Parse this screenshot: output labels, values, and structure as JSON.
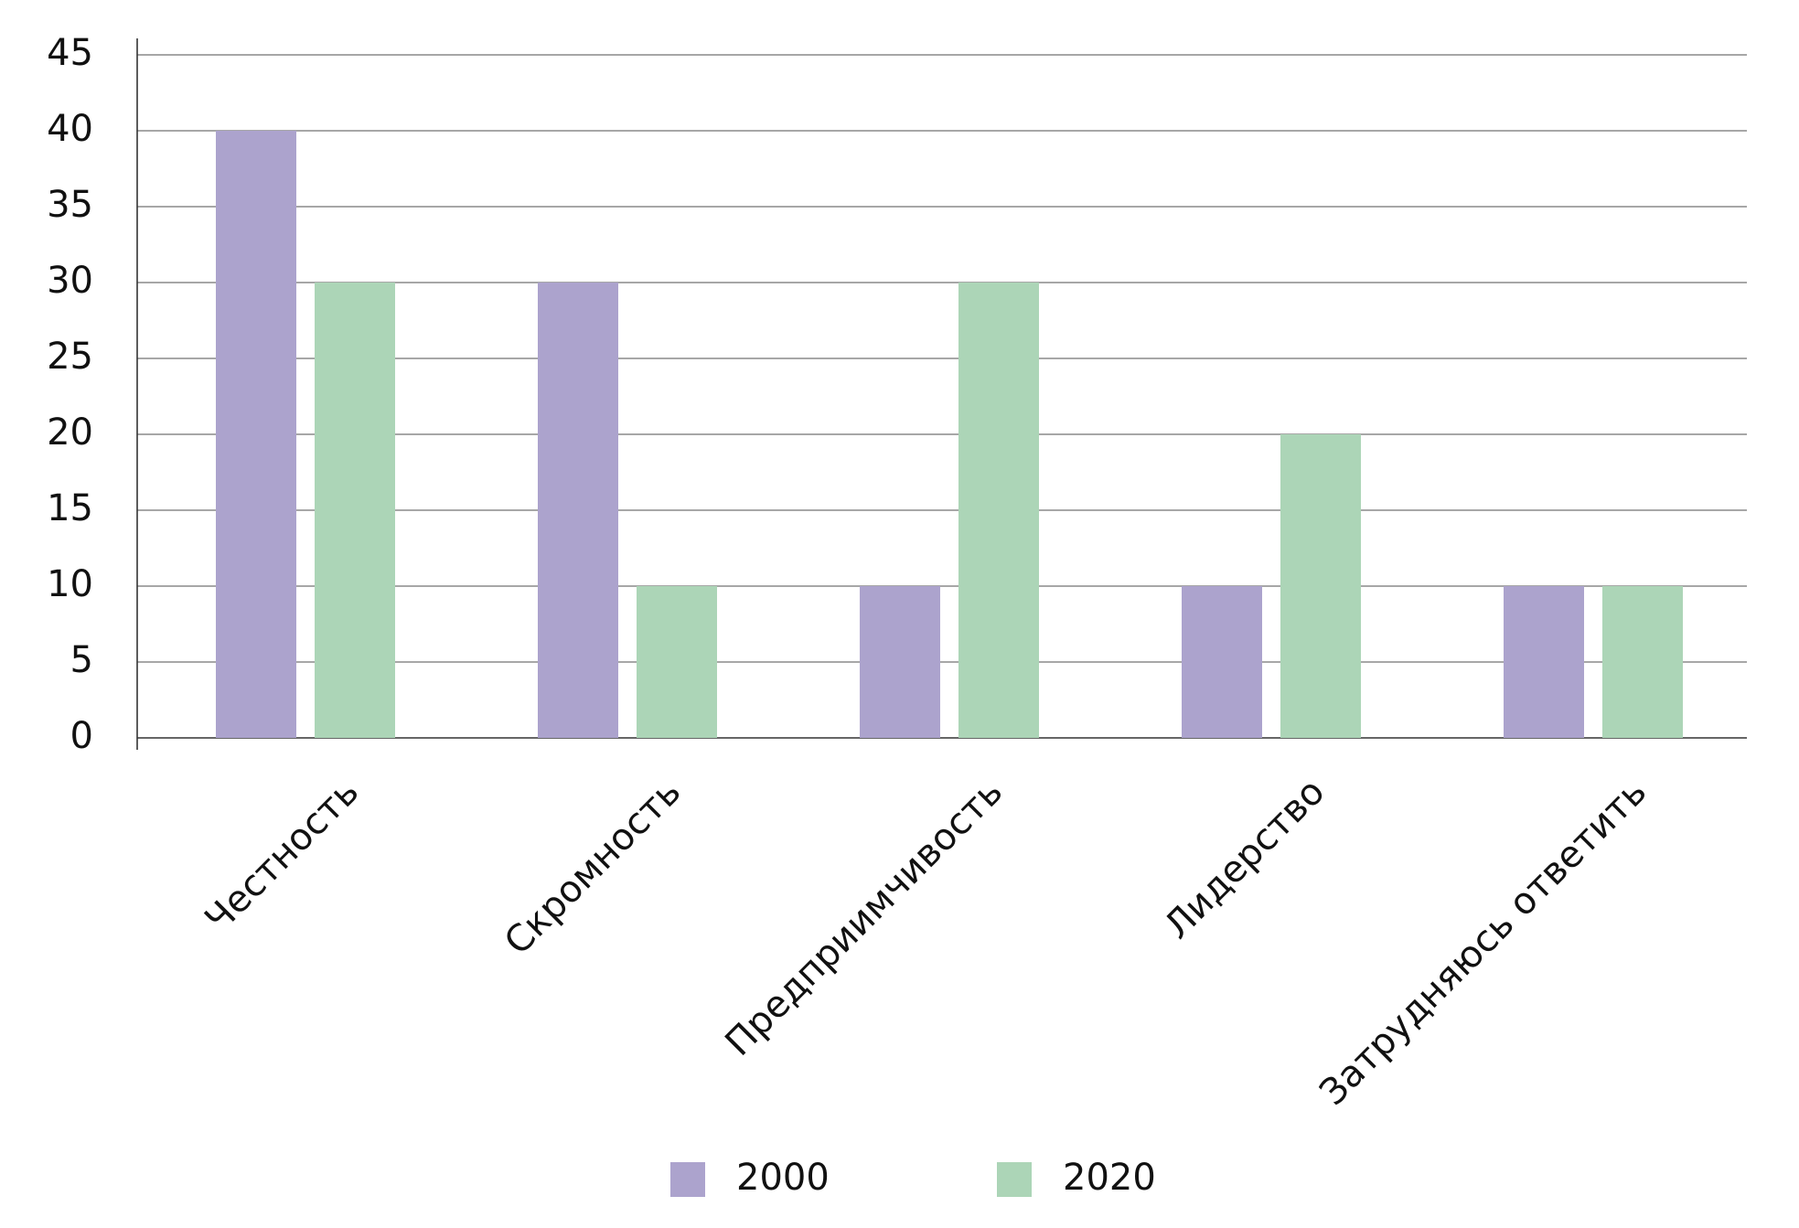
{
  "chart_data": {
    "type": "bar",
    "categories": [
      "Честность",
      "Скромность",
      "Предприимчивость",
      "Лидерство",
      "Затрудняюсь ответить"
    ],
    "series": [
      {
        "name": "2000",
        "color": "#aca3cd",
        "values": [
          40,
          30,
          10,
          10,
          10
        ]
      },
      {
        "name": "2020",
        "color": "#acd5b7",
        "values": [
          30,
          10,
          30,
          20,
          10
        ]
      }
    ],
    "y_ticks": [
      "0",
      "5",
      "10",
      "15",
      "20",
      "25",
      "30",
      "35",
      "40",
      "45"
    ],
    "ylim": [
      0,
      45
    ],
    "grid": true,
    "legend_position": "bottom",
    "title": "",
    "xlabel": "",
    "ylabel": ""
  }
}
